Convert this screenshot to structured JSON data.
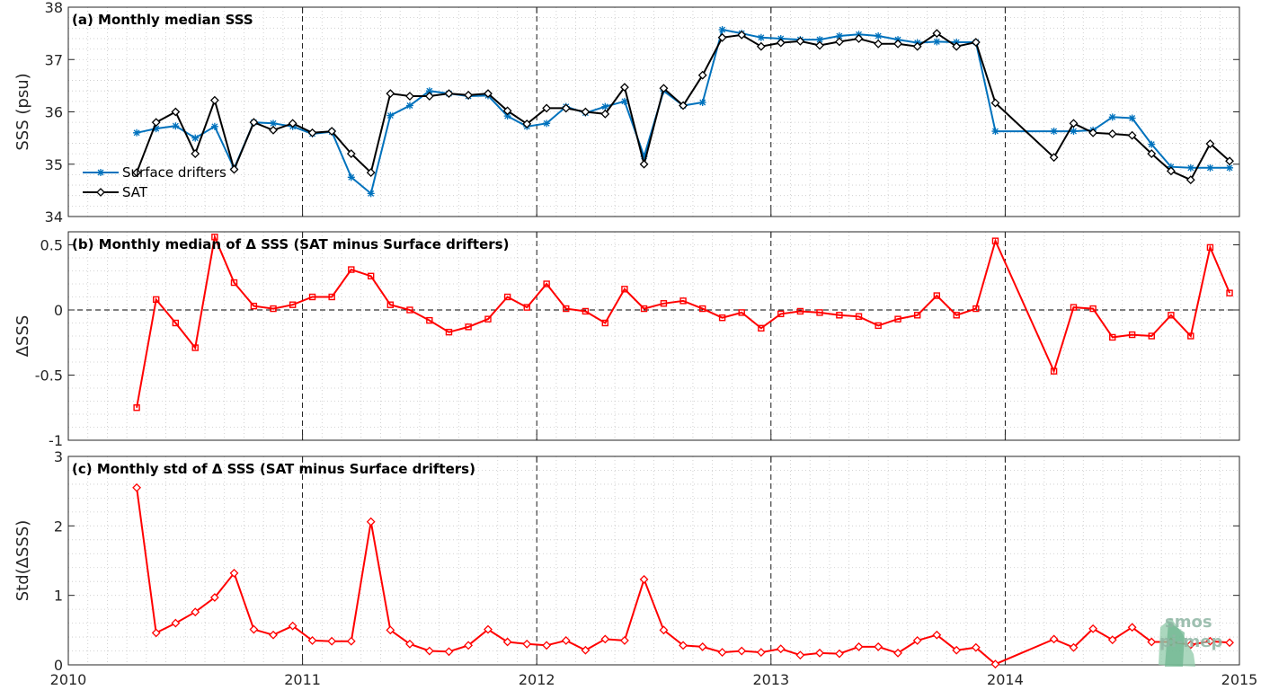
{
  "watermark": {
    "line1": "smos",
    "line2": "pi-mep"
  },
  "chart_data": [
    {
      "type": "line",
      "title": "(a) Monthly median SSS",
      "ylabel": "SSS (psu)",
      "xlim": [
        2010,
        2015
      ],
      "ylim": [
        34,
        38
      ],
      "x_ticks": [
        2010,
        2011,
        2012,
        2013,
        2014,
        2015
      ],
      "y_ticks": [
        34,
        35,
        36,
        37,
        38
      ],
      "legend": "left",
      "grid": true,
      "x": [
        2010.292,
        2010.375,
        2010.458,
        2010.542,
        2010.625,
        2010.708,
        2010.792,
        2010.875,
        2010.958,
        2011.042,
        2011.125,
        2011.208,
        2011.292,
        2011.375,
        2011.458,
        2011.542,
        2011.625,
        2011.708,
        2011.792,
        2011.875,
        2011.958,
        2012.042,
        2012.125,
        2012.208,
        2012.292,
        2012.375,
        2012.458,
        2012.542,
        2012.625,
        2012.708,
        2012.792,
        2012.875,
        2012.958,
        2013.042,
        2013.125,
        2013.208,
        2013.292,
        2013.375,
        2013.458,
        2013.542,
        2013.625,
        2013.708,
        2013.792,
        2013.875,
        2013.958,
        2014.208,
        2014.292,
        2014.375,
        2014.458,
        2014.542,
        2014.625,
        2014.708,
        2014.792,
        2014.875,
        2014.958
      ],
      "series": [
        {
          "name": "Surface drifters",
          "color": "#0072bd",
          "marker": "star",
          "values": [
            35.6,
            35.68,
            35.73,
            35.5,
            35.72,
            34.92,
            35.8,
            35.78,
            35.72,
            35.58,
            35.62,
            34.75,
            34.44,
            35.93,
            36.12,
            36.4,
            36.35,
            36.3,
            36.31,
            35.92,
            35.72,
            35.78,
            36.1,
            35.98,
            36.1,
            36.2,
            35.15,
            36.4,
            36.12,
            36.18,
            37.57,
            37.5,
            37.42,
            37.4,
            37.38,
            37.38,
            37.45,
            37.48,
            37.45,
            37.38,
            37.32,
            37.34,
            37.33,
            37.33,
            35.63,
            35.63,
            35.63,
            35.65,
            35.9,
            35.88,
            35.38,
            34.95,
            34.93,
            34.93,
            34.93
          ]
        },
        {
          "name": "SAT",
          "color": "#000000",
          "marker": "diamond",
          "values": [
            34.84,
            35.8,
            36.0,
            35.2,
            36.22,
            34.9,
            35.8,
            35.65,
            35.78,
            35.6,
            35.63,
            35.2,
            34.84,
            36.35,
            36.3,
            36.3,
            36.35,
            36.32,
            36.35,
            36.02,
            35.77,
            36.07,
            36.07,
            36.0,
            35.96,
            36.47,
            35.0,
            36.45,
            36.12,
            36.7,
            37.42,
            37.47,
            37.25,
            37.32,
            37.35,
            37.27,
            37.34,
            37.4,
            37.3,
            37.3,
            37.25,
            37.5,
            37.25,
            37.33,
            36.17,
            35.13,
            35.78,
            35.6,
            35.58,
            35.55,
            35.2,
            34.87,
            34.7,
            35.39,
            35.06
          ]
        }
      ]
    },
    {
      "type": "line",
      "title": "(b) Monthly median of Δ SSS (SAT minus Surface drifters)",
      "ylabel": "ΔSSS",
      "xlim": [
        2010,
        2015
      ],
      "ylim": [
        -1,
        0.6
      ],
      "x_ticks": [
        2010,
        2011,
        2012,
        2013,
        2014,
        2015
      ],
      "y_ticks": [
        -1,
        -0.5,
        0,
        0.5
      ],
      "y_tick_labels": [
        "-1",
        "-0.5",
        "0",
        "0.5"
      ],
      "reference_line": 0,
      "grid": true,
      "x": [
        2010.292,
        2010.375,
        2010.458,
        2010.542,
        2010.625,
        2010.708,
        2010.792,
        2010.875,
        2010.958,
        2011.042,
        2011.125,
        2011.208,
        2011.292,
        2011.375,
        2011.458,
        2011.542,
        2011.625,
        2011.708,
        2011.792,
        2011.875,
        2011.958,
        2012.042,
        2012.125,
        2012.208,
        2012.292,
        2012.375,
        2012.458,
        2012.542,
        2012.625,
        2012.708,
        2012.792,
        2012.875,
        2012.958,
        2013.042,
        2013.125,
        2013.208,
        2013.292,
        2013.375,
        2013.458,
        2013.542,
        2013.625,
        2013.708,
        2013.792,
        2013.875,
        2013.958,
        2014.208,
        2014.292,
        2014.375,
        2014.458,
        2014.542,
        2014.625,
        2014.708,
        2014.792,
        2014.875,
        2014.958
      ],
      "series": [
        {
          "color": "#ff0000",
          "marker": "square",
          "values": [
            -0.75,
            0.08,
            -0.1,
            -0.29,
            0.56,
            0.21,
            0.03,
            0.01,
            0.04,
            0.1,
            0.1,
            0.31,
            0.26,
            0.04,
            0.0,
            -0.08,
            -0.17,
            -0.13,
            -0.07,
            0.1,
            0.02,
            0.2,
            0.01,
            -0.01,
            -0.1,
            0.16,
            0.01,
            0.05,
            0.07,
            0.01,
            -0.06,
            -0.02,
            -0.14,
            -0.03,
            -0.01,
            -0.02,
            -0.04,
            -0.05,
            -0.12,
            -0.07,
            -0.04,
            0.11,
            -0.04,
            0.01,
            0.53,
            -0.47,
            0.02,
            0.01,
            -0.21,
            -0.19,
            -0.2,
            -0.04,
            -0.2,
            0.48,
            0.13
          ]
        }
      ]
    },
    {
      "type": "line",
      "title": "(c) Monthly std of Δ SSS (SAT minus Surface drifters)",
      "ylabel": "Std(ΔSSS)",
      "xlim": [
        2010,
        2015
      ],
      "ylim": [
        0,
        3
      ],
      "x_ticks": [
        2010,
        2011,
        2012,
        2013,
        2014,
        2015
      ],
      "x_tick_labels": [
        "2010",
        "2011",
        "2012",
        "2013",
        "2014",
        "2015"
      ],
      "y_ticks": [
        0,
        1,
        2,
        3
      ],
      "y_tick_labels": [
        "0",
        "1",
        "2",
        "3"
      ],
      "grid": true,
      "x": [
        2010.292,
        2010.375,
        2010.458,
        2010.542,
        2010.625,
        2010.708,
        2010.792,
        2010.875,
        2010.958,
        2011.042,
        2011.125,
        2011.208,
        2011.292,
        2011.375,
        2011.458,
        2011.542,
        2011.625,
        2011.708,
        2011.792,
        2011.875,
        2011.958,
        2012.042,
        2012.125,
        2012.208,
        2012.292,
        2012.375,
        2012.458,
        2012.542,
        2012.625,
        2012.708,
        2012.792,
        2012.875,
        2012.958,
        2013.042,
        2013.125,
        2013.208,
        2013.292,
        2013.375,
        2013.458,
        2013.542,
        2013.625,
        2013.708,
        2013.792,
        2013.875,
        2013.958,
        2014.208,
        2014.292,
        2014.375,
        2014.458,
        2014.542,
        2014.625,
        2014.708,
        2014.792,
        2014.875,
        2014.958
      ],
      "series": [
        {
          "color": "#ff0000",
          "marker": "diamond",
          "values": [
            2.55,
            0.46,
            0.6,
            0.76,
            0.97,
            1.32,
            0.51,
            0.43,
            0.56,
            0.35,
            0.34,
            0.34,
            2.06,
            0.5,
            0.3,
            0.2,
            0.19,
            0.28,
            0.51,
            0.33,
            0.3,
            0.28,
            0.35,
            0.21,
            0.37,
            0.35,
            1.23,
            0.5,
            0.28,
            0.26,
            0.18,
            0.2,
            0.18,
            0.23,
            0.14,
            0.17,
            0.16,
            0.26,
            0.26,
            0.17,
            0.35,
            0.43,
            0.21,
            0.25,
            0.01,
            0.37,
            0.25,
            0.52,
            0.36,
            0.54,
            0.33,
            0.33,
            0.29,
            0.34,
            0.32
          ]
        }
      ]
    }
  ]
}
